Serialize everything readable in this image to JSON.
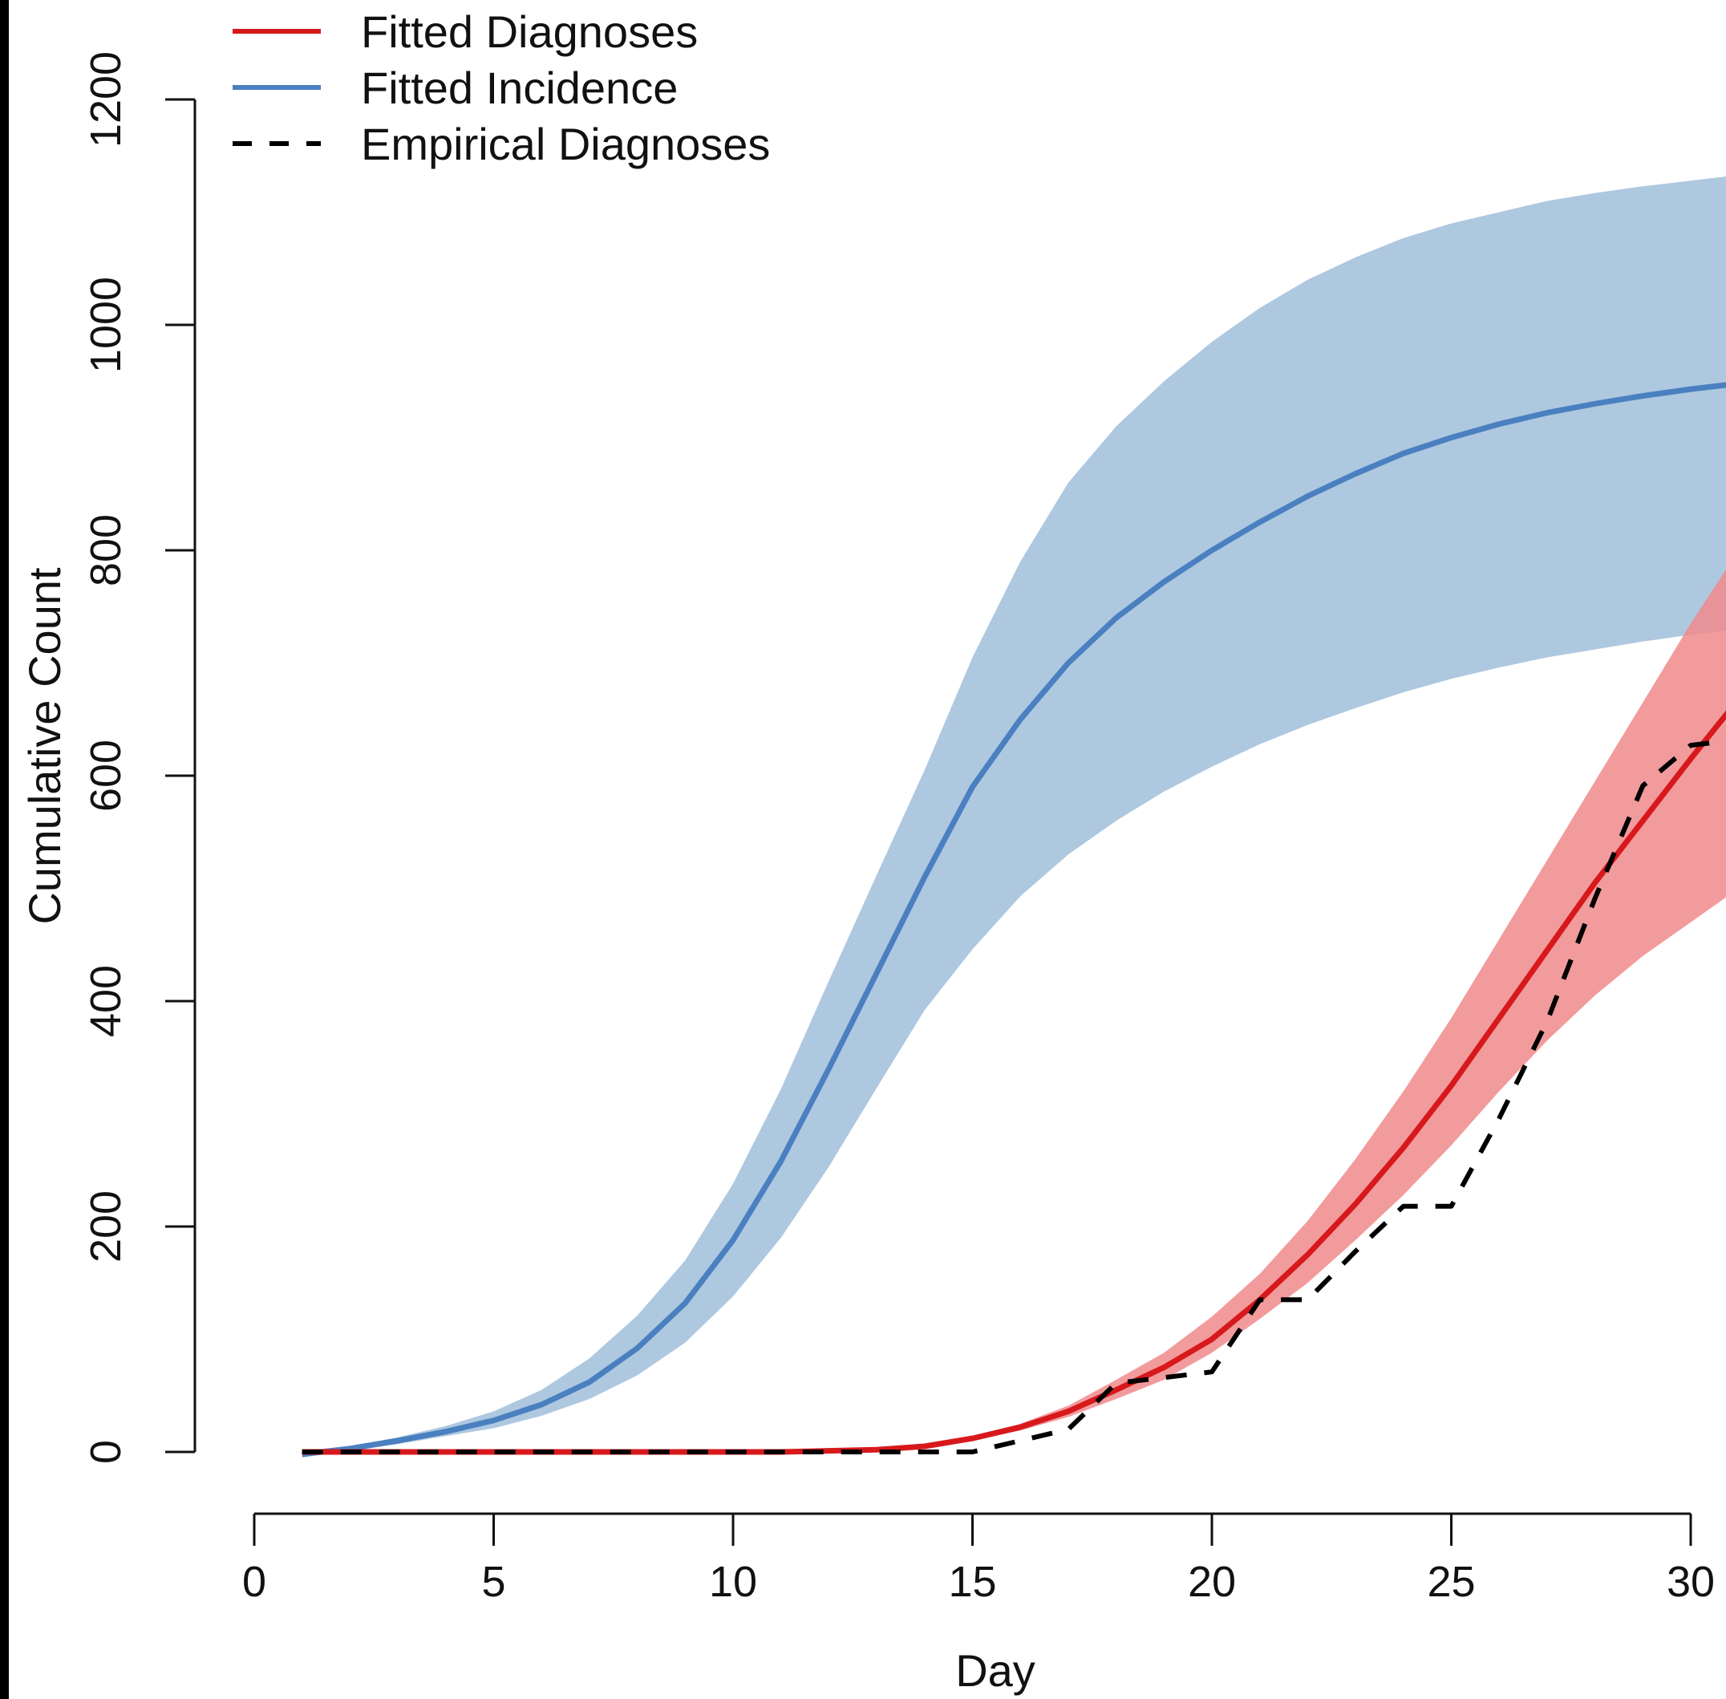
{
  "chart_data": {
    "type": "line",
    "xlabel": "Day",
    "ylabel": "Cumulative Count",
    "xlim": [
      0,
      30
    ],
    "ylim": [
      0,
      1200
    ],
    "x_ticks": [
      0,
      5,
      10,
      15,
      20,
      25,
      30
    ],
    "y_ticks": [
      0,
      200,
      400,
      600,
      800,
      1000,
      1200
    ],
    "grid": false,
    "legend": {
      "position": "top-left",
      "entries": [
        {
          "label": "Fitted Diagnoses",
          "color": "#d7191c",
          "style": "solid"
        },
        {
          "label": "Fitted Incidence",
          "color": "#4a80c0",
          "style": "solid"
        },
        {
          "label": "Empirical Diagnoses",
          "color": "#000000",
          "style": "dashed"
        }
      ]
    },
    "series": [
      {
        "name": "Fitted Incidence",
        "color": "#4a80c0",
        "band_color": "#a0bedb",
        "x": [
          1,
          2,
          3,
          4,
          5,
          6,
          7,
          8,
          9,
          10,
          11,
          12,
          13,
          14,
          15,
          16,
          17,
          18,
          19,
          20,
          21,
          22,
          23,
          24,
          25,
          26,
          27,
          28,
          29,
          30,
          31
        ],
        "values": [
          -2,
          3,
          10,
          18,
          28,
          42,
          62,
          92,
          132,
          188,
          258,
          340,
          425,
          510,
          590,
          650,
          700,
          740,
          772,
          800,
          825,
          848,
          868,
          886,
          900,
          912,
          922,
          930,
          937,
          943,
          948
        ],
        "lower": [
          -5,
          1,
          7,
          14,
          21,
          32,
          47,
          68,
          97,
          138,
          190,
          253,
          323,
          392,
          446,
          493,
          530,
          560,
          586,
          608,
          628,
          645,
          660,
          674,
          686,
          696,
          705,
          712,
          719,
          725,
          730
        ],
        "upper": [
          -1,
          5,
          13,
          23,
          36,
          55,
          83,
          121,
          170,
          238,
          322,
          418,
          512,
          605,
          705,
          790,
          860,
          910,
          950,
          985,
          1015,
          1040,
          1060,
          1077,
          1090,
          1100,
          1110,
          1117,
          1123,
          1128,
          1133
        ]
      },
      {
        "name": "Fitted Diagnoses",
        "color": "#d7191c",
        "band_color": "#f08a8c",
        "x": [
          1,
          2,
          3,
          4,
          5,
          6,
          7,
          8,
          9,
          10,
          11,
          12,
          13,
          14,
          15,
          16,
          17,
          18,
          19,
          20,
          21,
          22,
          23,
          24,
          25,
          26,
          27,
          28,
          29,
          30,
          31
        ],
        "values": [
          0,
          0,
          0,
          0,
          0,
          0,
          0,
          0,
          0,
          0,
          0,
          1,
          2,
          5,
          12,
          22,
          36,
          55,
          75,
          100,
          135,
          175,
          220,
          270,
          325,
          385,
          445,
          505,
          560,
          615,
          668
        ],
        "lower": [
          0,
          0,
          0,
          0,
          0,
          0,
          0,
          0,
          0,
          0,
          0,
          1,
          2,
          4,
          10,
          19,
          31,
          47,
          64,
          88,
          118,
          150,
          188,
          228,
          272,
          320,
          365,
          405,
          440,
          470,
          500
        ],
        "upper": [
          0,
          0,
          0,
          0,
          0,
          0,
          0,
          0,
          0,
          0,
          0,
          1,
          3,
          6,
          14,
          25,
          41,
          64,
          88,
          120,
          158,
          205,
          260,
          320,
          385,
          455,
          525,
          595,
          665,
          735,
          800
        ]
      },
      {
        "name": "Empirical Diagnoses",
        "color": "#000000",
        "style": "dashed",
        "x": [
          1,
          2,
          3,
          4,
          5,
          6,
          7,
          8,
          9,
          10,
          11,
          12,
          13,
          14,
          15,
          16,
          17,
          18,
          19,
          20,
          21,
          22,
          23,
          24,
          25,
          26,
          27,
          28,
          29,
          30,
          31
        ],
        "values": [
          0,
          0,
          0,
          0,
          0,
          0,
          0,
          0,
          0,
          0,
          0,
          0,
          0,
          0,
          0,
          10,
          20,
          61,
          66,
          71,
          135,
          135,
          178,
          218,
          218,
          296,
          382,
          491,
          591,
          627,
          632
        ]
      }
    ]
  }
}
